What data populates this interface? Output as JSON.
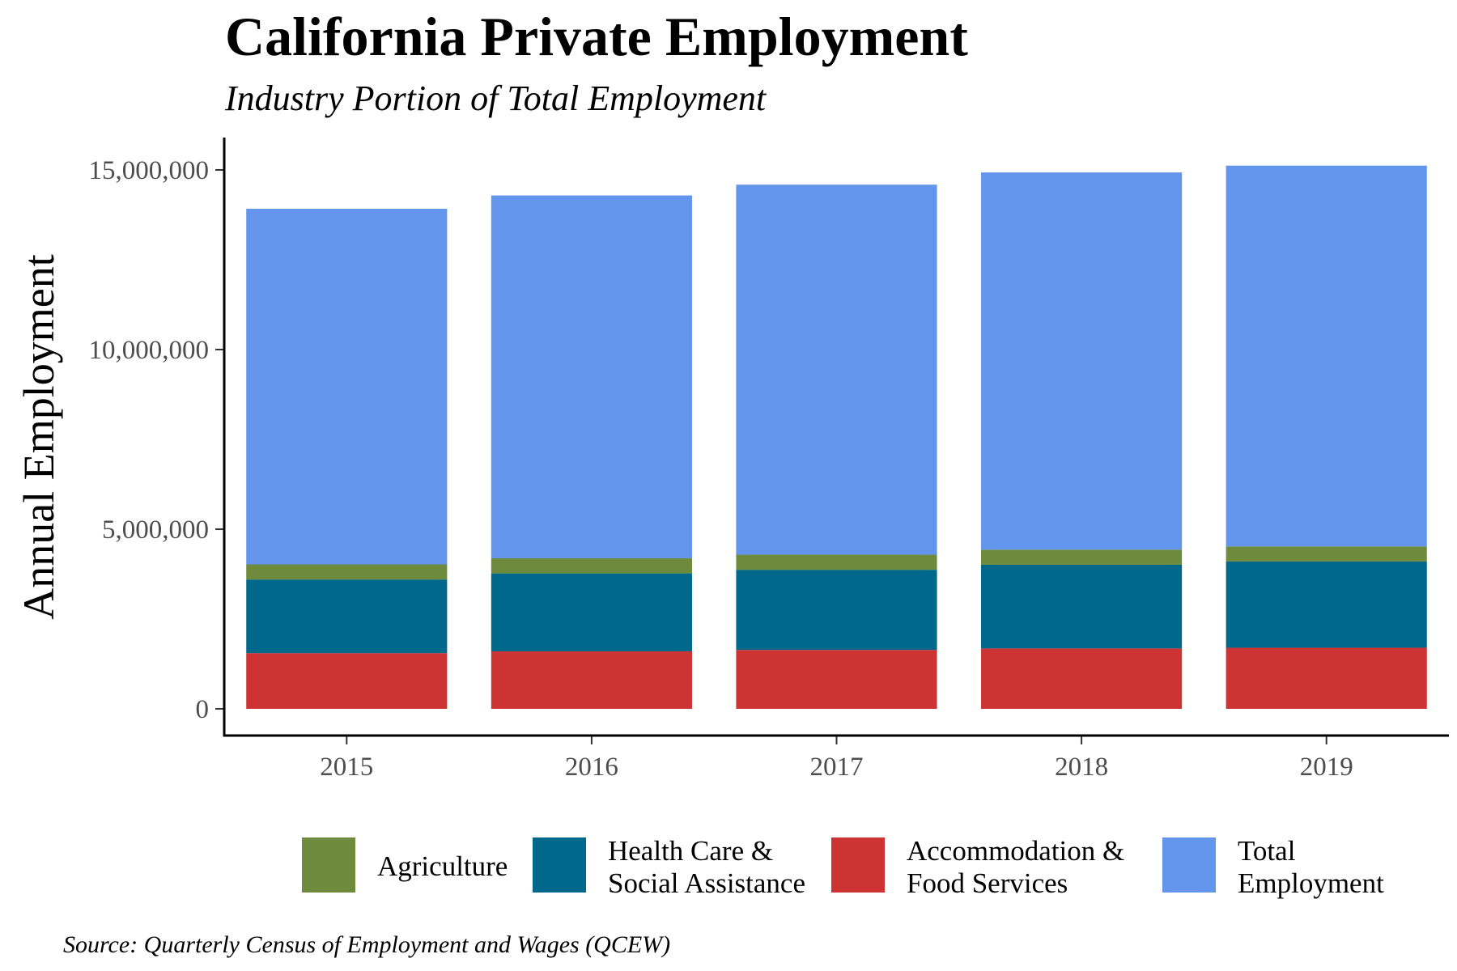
{
  "chart_data": {
    "type": "bar",
    "stacked": true,
    "title": "California Private Employment",
    "subtitle": "Industry Portion of Total Employment",
    "xlabel": "",
    "ylabel": "Annual Employment",
    "caption": "Source: Quarterly Census of Employment and Wages (QCEW)",
    "categories": [
      "2015",
      "2016",
      "2017",
      "2018",
      "2019"
    ],
    "ylim": [
      0,
      15900000
    ],
    "yticks": [
      0,
      5000000,
      10000000,
      15000000
    ],
    "ytick_labels": [
      "0",
      "5,000,000",
      "10,000,000",
      "15,000,000"
    ],
    "grid": false,
    "legend_position": "bottom",
    "series": [
      {
        "name": "Accommodation & Food Services",
        "legend_lines": [
          "Accommodation &",
          "Food Services"
        ],
        "color": "#cd3333",
        "values": [
          1550000,
          1600000,
          1640000,
          1680000,
          1700000
        ]
      },
      {
        "name": "Health Care & Social Assistance",
        "legend_lines": [
          "Health Care &",
          "Social Assistance"
        ],
        "color": "#00688b",
        "values": [
          2050000,
          2170000,
          2230000,
          2330000,
          2400000
        ]
      },
      {
        "name": "Agriculture",
        "legend_lines": [
          "Agriculture"
        ],
        "color": "#6e8b3d",
        "values": [
          420000,
          420000,
          420000,
          420000,
          420000
        ]
      },
      {
        "name": "Total Employment",
        "legend_lines": [
          "Total",
          "Employment"
        ],
        "color": "#6495ed",
        "values": [
          9900000,
          10100000,
          10300000,
          10500000,
          10600000
        ]
      }
    ],
    "legend_order": [
      "Agriculture",
      "Health Care & Social Assistance",
      "Accommodation & Food Services",
      "Total Employment"
    ]
  }
}
